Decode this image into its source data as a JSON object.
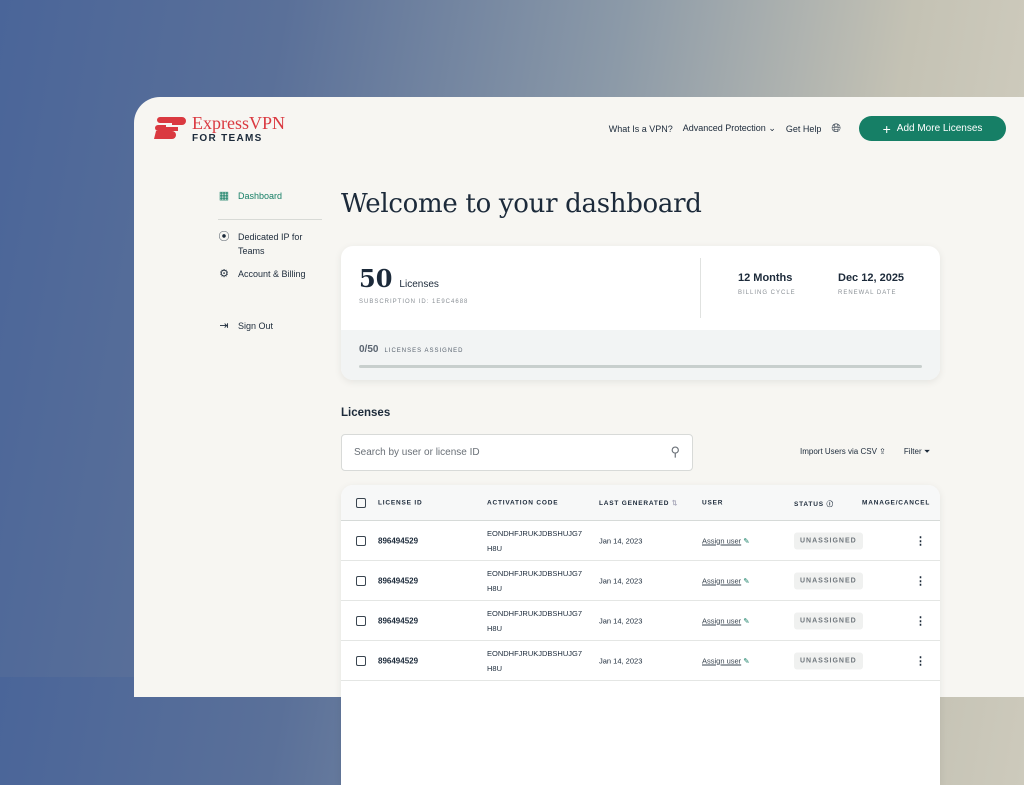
{
  "header": {
    "brand": "ExpressVPN",
    "brand_sub": "FOR TEAMS",
    "nav": [
      "What Is a VPN?",
      "Advanced Protection",
      "Get Help"
    ],
    "add_button": "Add More Licenses"
  },
  "sidebar": {
    "items": [
      {
        "label": "Dashboard",
        "icon": "grid-icon",
        "active": true
      },
      {
        "label": "Dedicated IP for Teams",
        "icon": "location-pin-icon"
      },
      {
        "label": "Account & Billing",
        "icon": "gear-icon"
      },
      {
        "label": "Sign Out",
        "icon": "sign-out-icon"
      }
    ]
  },
  "main": {
    "title": "Welcome to your dashboard",
    "summary": {
      "count": "50",
      "count_label": "Licenses",
      "subscription": "SUBSCRIPTION ID: 1E9C4688",
      "billing_value": "12 Months",
      "billing_label": "BILLING CYCLE",
      "renewal_value": "Dec 12, 2025",
      "renewal_label": "RENEWAL DATE",
      "assigned": "0/50",
      "assigned_label": "LICENSES ASSIGNED",
      "assigned_fraction": 0
    },
    "licenses_title": "Licenses",
    "search_placeholder": "Search by user or license ID",
    "import_label": "Import Users via CSV",
    "filter_label": "Filter",
    "columns": [
      "LICENSE ID",
      "ACTIVATION CODE",
      "LAST GENERATED",
      "USER",
      "STATUS",
      "MANAGE/CANCEL"
    ],
    "rows": [
      {
        "id": "896494529",
        "code1": "EONDHFJRUKJDBSHUJG7",
        "code2": "H8U",
        "date": "Jan 14, 2023",
        "user": "Assign user",
        "status": "UNASSIGNED"
      },
      {
        "id": "896494529",
        "code1": "EONDHFJRUKJDBSHUJG7",
        "code2": "H8U",
        "date": "Jan 14, 2023",
        "user": "Assign user",
        "status": "UNASSIGNED"
      },
      {
        "id": "896494529",
        "code1": "EONDHFJRUKJDBSHUJG7",
        "code2": "H8U",
        "date": "Jan 14, 2023",
        "user": "Assign user",
        "status": "UNASSIGNED"
      },
      {
        "id": "896494529",
        "code1": "EONDHFJRUKJDBSHUJG7",
        "code2": "H8U",
        "date": "Jan 14, 2023",
        "user": "Assign user",
        "status": "UNASSIGNED"
      }
    ]
  },
  "colors": {
    "accent": "#167f66",
    "brand": "#da3940"
  }
}
